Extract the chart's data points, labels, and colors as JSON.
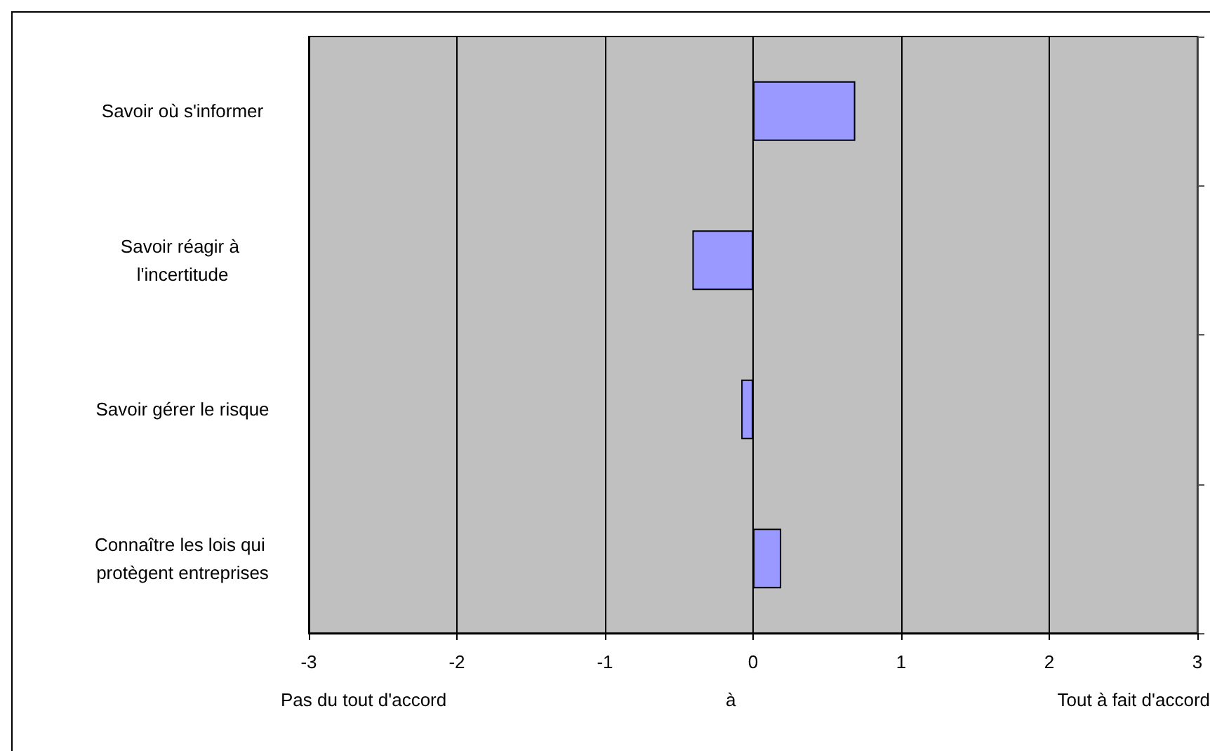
{
  "chart_data": {
    "type": "bar",
    "orientation": "horizontal",
    "categories": [
      "Savoir où s'informer",
      "Savoir réagir à l'incertitude",
      "Savoir gérer le risque",
      "Connaître les lois qui protègent entreprises"
    ],
    "values": [
      0.69,
      -0.41,
      -0.08,
      0.19
    ],
    "color": "#9999ff",
    "xlim": [
      -3,
      3
    ],
    "xticks": [
      -3,
      -2,
      -1,
      0,
      1,
      2,
      3
    ],
    "grid": "x",
    "annotations": [
      "Pas du tout d'accord",
      "à",
      "Tout à fait d'accord"
    ]
  }
}
